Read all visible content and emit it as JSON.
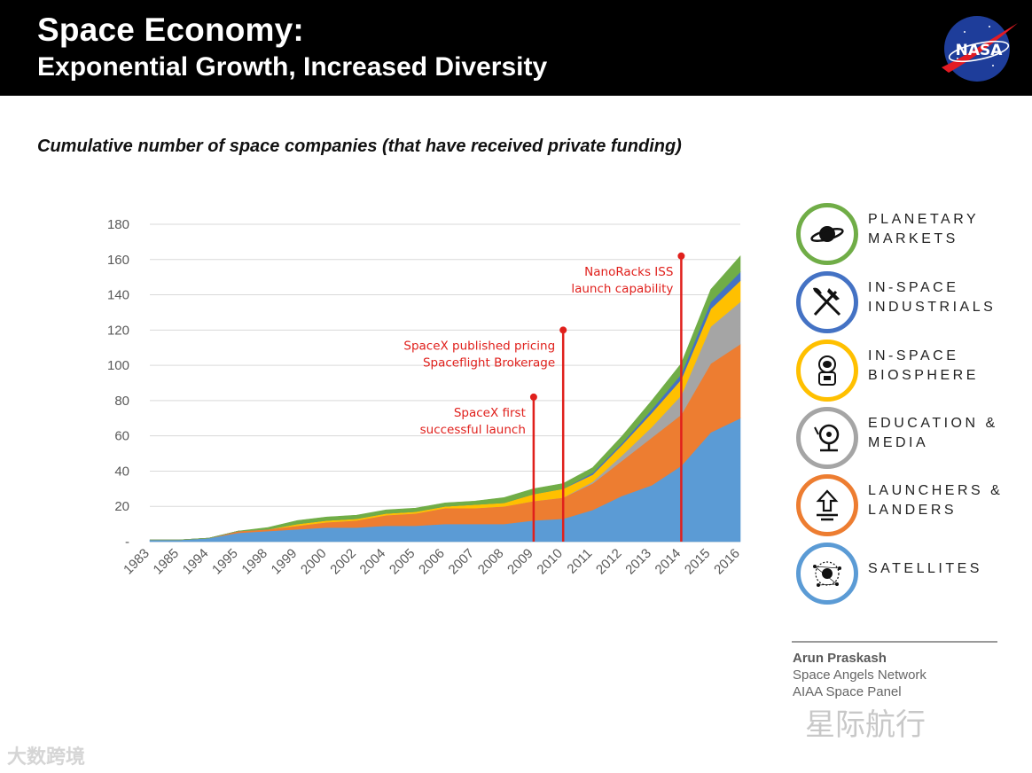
{
  "header": {
    "title_line1": "Space Economy:",
    "title_line2": "Exponential Growth, Increased Diversity",
    "logo_text": "NASA"
  },
  "subtitle": "Cumulative number of space companies (that have received private funding)",
  "chart_data": {
    "type": "area",
    "stacked": true,
    "title": "Cumulative number of space companies (that have received private funding)",
    "xlabel": "",
    "ylabel": "",
    "ylim": [
      0,
      180
    ],
    "yticks": [
      0,
      20,
      40,
      60,
      80,
      100,
      120,
      140,
      160,
      180
    ],
    "ytick_labels": [
      "-",
      "20",
      "40",
      "60",
      "80",
      "100",
      "120",
      "140",
      "160",
      "180"
    ],
    "grid": true,
    "categories": [
      "1983",
      "1985",
      "1994",
      "1995",
      "1998",
      "1999",
      "2000",
      "2002",
      "2004",
      "2005",
      "2006",
      "2007",
      "2008",
      "2009",
      "2010",
      "2011",
      "2012",
      "2013",
      "2014",
      "2015",
      "2016"
    ],
    "series": [
      {
        "name": "Satellites",
        "color": "#5b9bd5",
        "values": [
          1,
          1,
          2,
          5,
          6,
          7,
          8,
          8,
          9,
          9,
          10,
          10,
          10,
          12,
          13,
          18,
          26,
          32,
          43,
          62,
          70
        ]
      },
      {
        "name": "Launchers & Landers",
        "color": "#ed7d31",
        "values": [
          0,
          0,
          0,
          1,
          1,
          2,
          3,
          4,
          6,
          7,
          9,
          9,
          10,
          11,
          12,
          15,
          20,
          27,
          29,
          39,
          42
        ]
      },
      {
        "name": "Education & Media",
        "color": "#a5a5a5",
        "values": [
          0,
          0,
          0,
          0,
          0,
          0,
          0,
          0,
          0,
          0,
          0,
          0,
          0,
          0,
          0,
          1,
          3,
          6,
          11,
          21,
          24
        ]
      },
      {
        "name": "In-Space Biosphere",
        "color": "#ffc000",
        "values": [
          0,
          0,
          0,
          0,
          0,
          1,
          1,
          1,
          1,
          1,
          1,
          2,
          2,
          4,
          5,
          4,
          6,
          8,
          9,
          10,
          12
        ]
      },
      {
        "name": "In-Space Industrials",
        "color": "#4472c4",
        "values": [
          0,
          0,
          0,
          0,
          0,
          0,
          0,
          0,
          0,
          0,
          0,
          0,
          0,
          0,
          0,
          1,
          1,
          2,
          3,
          4,
          5
        ]
      },
      {
        "name": "Planetary Markets",
        "color": "#70ad47",
        "values": [
          0,
          0,
          0,
          0,
          1,
          2,
          2,
          2,
          2,
          2,
          2,
          2,
          3,
          3,
          3,
          3,
          4,
          5,
          6,
          7,
          9
        ]
      }
    ],
    "annotations": [
      {
        "lines": [
          "SpaceX first",
          "successful launch"
        ],
        "x": "2009",
        "y": 82,
        "color": "#e0201c"
      },
      {
        "lines": [
          "SpaceX published pricing",
          "Spaceflight Brokerage"
        ],
        "x": "2010",
        "y": 120,
        "color": "#e0201c"
      },
      {
        "lines": [
          "NanoRacks ISS",
          "launch capability"
        ],
        "x": "2014",
        "y": 162,
        "color": "#e0201c"
      }
    ]
  },
  "legend": [
    {
      "line1": "PLANETARY",
      "line2": "MARKETS",
      "color": "#70ad47",
      "icon": "planet-icon"
    },
    {
      "line1": "IN-SPACE",
      "line2": "INDUSTRIALS",
      "color": "#4472c4",
      "icon": "pickaxe-shovel-icon"
    },
    {
      "line1": "IN-SPACE",
      "line2": "BIOSPHERE",
      "color": "#ffc000",
      "icon": "astronaut-icon"
    },
    {
      "line1": "EDUCATION &",
      "line2": "MEDIA",
      "color": "#a5a5a5",
      "icon": "satellite-dish-icon"
    },
    {
      "line1": "LAUNCHERS &",
      "line2": "LANDERS",
      "color": "#ed7d31",
      "icon": "launch-arrow-icon"
    },
    {
      "line1": "SATELLITES",
      "line2": "",
      "color": "#5b9bd5",
      "icon": "globe-network-icon"
    }
  ],
  "credits": {
    "name": "Arun Praskash",
    "org": "Space Angels Network",
    "panel": "AIAA Space Panel"
  },
  "watermarks": {
    "right": "星际航行",
    "left": "大数跨境"
  }
}
